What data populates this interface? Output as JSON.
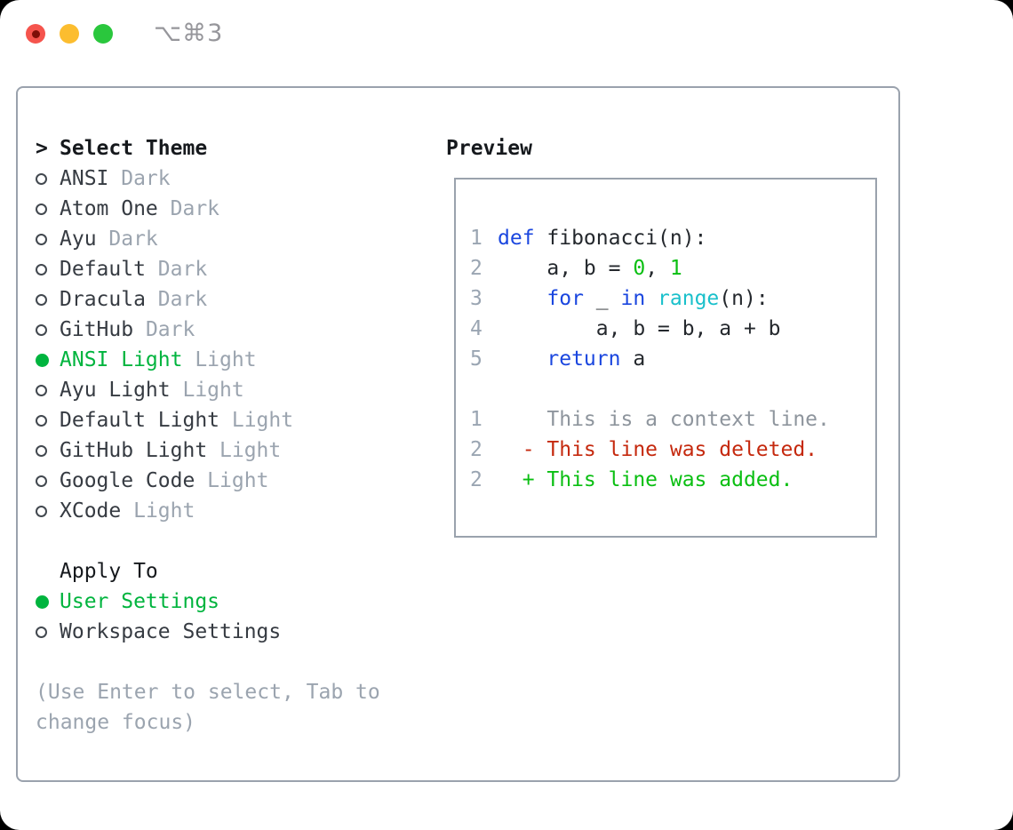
{
  "titlebar": {
    "shortcut": "⌥⌘3"
  },
  "theme_selector": {
    "prompt": ">",
    "title": "Select Theme",
    "items": [
      {
        "name": "ANSI",
        "variant": "Dark",
        "selected": false
      },
      {
        "name": "Atom One",
        "variant": "Dark",
        "selected": false
      },
      {
        "name": "Ayu",
        "variant": "Dark",
        "selected": false
      },
      {
        "name": "Default",
        "variant": "Dark",
        "selected": false
      },
      {
        "name": "Dracula",
        "variant": "Dark",
        "selected": false
      },
      {
        "name": "GitHub",
        "variant": "Dark",
        "selected": false
      },
      {
        "name": "ANSI Light",
        "variant": "Light",
        "selected": true
      },
      {
        "name": "Ayu Light",
        "variant": "Light",
        "selected": false
      },
      {
        "name": "Default Light",
        "variant": "Light",
        "selected": false
      },
      {
        "name": "GitHub Light",
        "variant": "Light",
        "selected": false
      },
      {
        "name": "Google Code",
        "variant": "Light",
        "selected": false
      },
      {
        "name": "XCode",
        "variant": "Light",
        "selected": false
      }
    ]
  },
  "apply_to": {
    "title": "Apply To",
    "options": [
      {
        "label": "User Settings",
        "selected": true
      },
      {
        "label": "Workspace Settings",
        "selected": false
      }
    ]
  },
  "help_text": "(Use Enter to select, Tab to change focus)",
  "preview": {
    "title": "Preview",
    "lines": [
      {
        "num": "1",
        "tokens": [
          {
            "t": "def",
            "c": "kw"
          },
          {
            "t": " fibonacci(n):",
            "c": "txt"
          }
        ]
      },
      {
        "num": "2",
        "tokens": [
          {
            "t": "    a, b = ",
            "c": "txt"
          },
          {
            "t": "0",
            "c": "num"
          },
          {
            "t": ", ",
            "c": "txt"
          },
          {
            "t": "1",
            "c": "num"
          }
        ]
      },
      {
        "num": "3",
        "tokens": [
          {
            "t": "    ",
            "c": "txt"
          },
          {
            "t": "for",
            "c": "kw"
          },
          {
            "t": " _ ",
            "c": "txt"
          },
          {
            "t": "in",
            "c": "kw"
          },
          {
            "t": " ",
            "c": "txt"
          },
          {
            "t": "range",
            "c": "fn"
          },
          {
            "t": "(n):",
            "c": "txt"
          }
        ]
      },
      {
        "num": "4",
        "tokens": [
          {
            "t": "        a, b = b, a + b",
            "c": "txt"
          }
        ]
      },
      {
        "num": "5",
        "tokens": [
          {
            "t": "    ",
            "c": "txt"
          },
          {
            "t": "return",
            "c": "kw"
          },
          {
            "t": " a",
            "c": "txt"
          }
        ]
      },
      {
        "num": "",
        "tokens": []
      },
      {
        "num": "1",
        "tokens": [
          {
            "t": "    This is a context line.",
            "c": "ctx"
          }
        ]
      },
      {
        "num": "2",
        "tokens": [
          {
            "t": "  - This line was deleted.",
            "c": "del"
          }
        ]
      },
      {
        "num": "2",
        "tokens": [
          {
            "t": "  + This line was added.",
            "c": "add"
          }
        ]
      }
    ]
  },
  "colors": {
    "tl_red": "#f5544d",
    "tl_red_dot": "#7e0f08",
    "tl_yellow": "#fcbd2f",
    "tl_green": "#2ac73d",
    "shortcut": "#96969b",
    "border": "#9aa2ad",
    "heading": "#16191d",
    "item": "#363b42",
    "muted": "#9ba4af",
    "radio": "#42484f",
    "select_green": "#00b43e",
    "linenum": "#9aa5b2",
    "code_text": "#24282d",
    "kw": "#1a46df",
    "fn": "#1ac0cb",
    "numlit": "#0abf12",
    "ctx": "#8e959d",
    "del": "#c5290e",
    "add": "#0abf12"
  }
}
